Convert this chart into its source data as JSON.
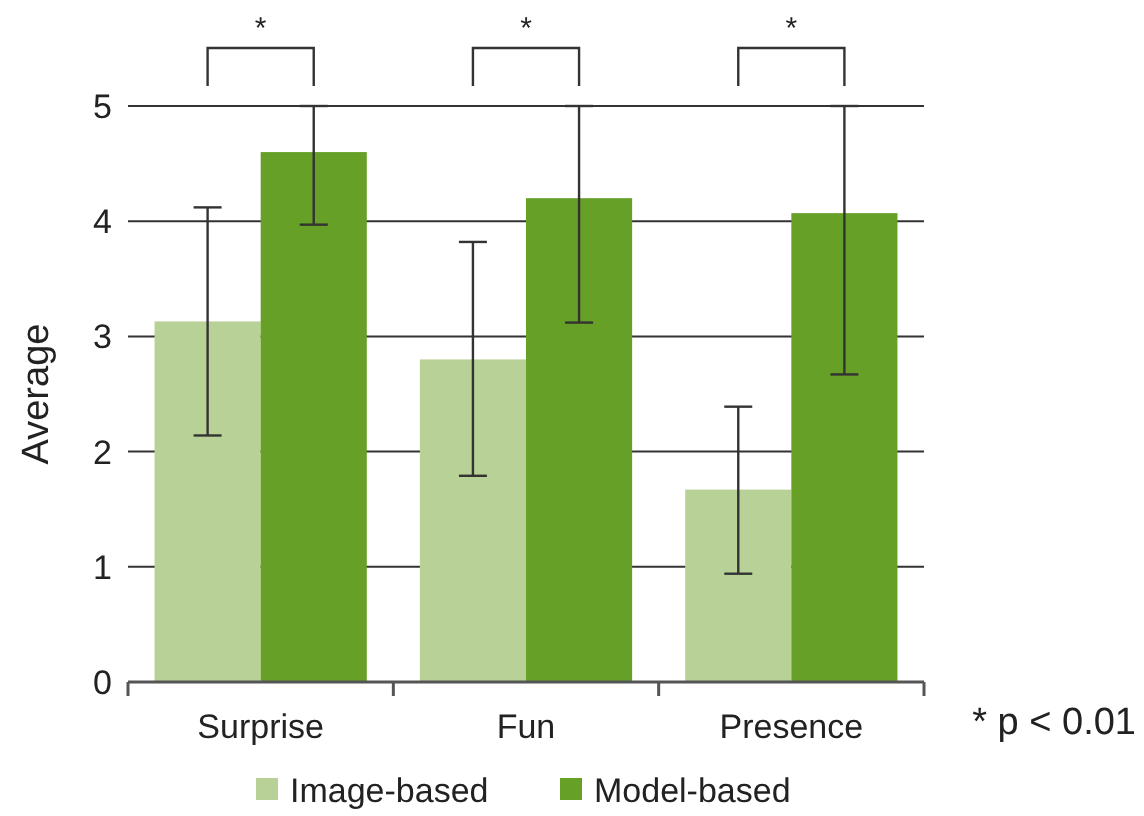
{
  "chart_data": {
    "type": "bar",
    "ylabel": "Average",
    "categories": [
      "Surprise",
      "Fun",
      "Presence"
    ],
    "series": [
      {
        "name": "Image-based",
        "color": "#b8d197",
        "values": [
          3.13,
          2.8,
          1.67
        ],
        "errors": [
          [
            2.14,
            4.12
          ],
          [
            1.79,
            3.82
          ],
          [
            0.94,
            2.39
          ]
        ]
      },
      {
        "name": "Model-based",
        "color": "#66a026",
        "values": [
          4.6,
          4.2,
          4.07
        ],
        "errors": [
          [
            3.97,
            5
          ],
          [
            3.12,
            5
          ],
          [
            2.67,
            5
          ]
        ]
      }
    ],
    "ylim": [
      0,
      5
    ],
    "yticks": [
      0,
      1,
      2,
      3,
      4,
      5
    ],
    "grid": "y",
    "legend": "bottom",
    "annotations": [
      "*",
      "*",
      "*",
      "* p < 0.01"
    ]
  }
}
